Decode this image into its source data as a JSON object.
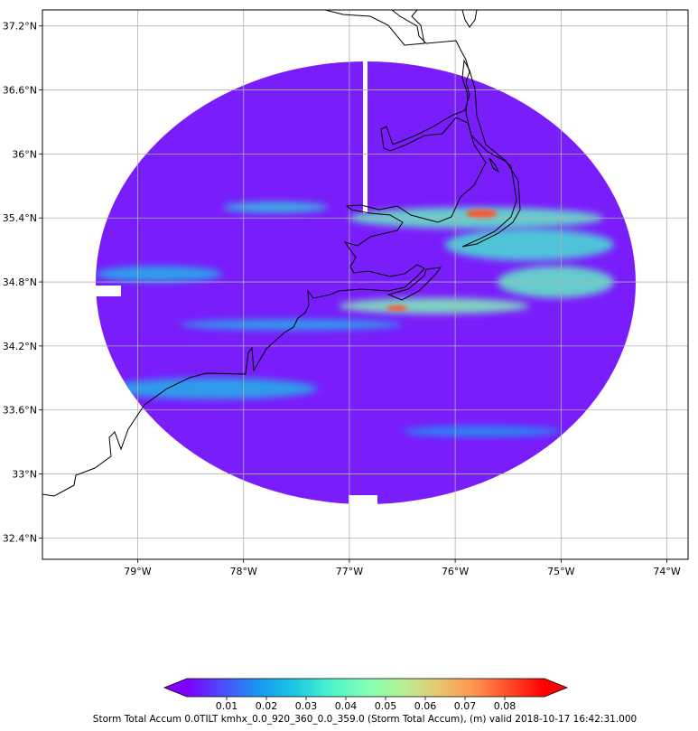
{
  "map": {
    "lon_range": [
      -79.9,
      -73.8
    ],
    "lat_range": [
      32.2,
      37.35
    ],
    "lat_ticks": [
      {
        "value": 37.2,
        "label": "37.2°N"
      },
      {
        "value": 36.6,
        "label": "36.6°N"
      },
      {
        "value": 36.0,
        "label": "36°N"
      },
      {
        "value": 35.4,
        "label": "35.4°N"
      },
      {
        "value": 34.8,
        "label": "34.8°N"
      },
      {
        "value": 34.2,
        "label": "34.2°N"
      },
      {
        "value": 33.6,
        "label": "33.6°N"
      },
      {
        "value": 33.0,
        "label": "33°N"
      },
      {
        "value": 32.4,
        "label": "32.4°N"
      }
    ],
    "lon_ticks": [
      {
        "value": -79,
        "label": "79°W"
      },
      {
        "value": -78,
        "label": "78°W"
      },
      {
        "value": -77,
        "label": "77°W"
      },
      {
        "value": -76,
        "label": "76°W"
      },
      {
        "value": -75,
        "label": "75°W"
      },
      {
        "value": -74,
        "label": "74°W"
      }
    ],
    "gridlines": true,
    "radar_center": {
      "lon": -76.88,
      "lat": 34.78
    },
    "radar_color": "#7a1dfb",
    "coastline_color": "#000000",
    "high_accum_bands": [
      {
        "lon": [
          -78.2,
          -77.2
        ],
        "lat": [
          35.45,
          35.55
        ],
        "value": 0.03
      },
      {
        "lon": [
          -77.0,
          -74.6
        ],
        "lat": [
          35.3,
          35.5
        ],
        "value": 0.04
      },
      {
        "lon": [
          -75.9,
          -75.6
        ],
        "lat": [
          35.4,
          35.48
        ],
        "value": 0.08
      },
      {
        "lon": [
          -76.1,
          -74.5
        ],
        "lat": [
          35.0,
          35.3
        ],
        "value": 0.035
      },
      {
        "lon": [
          -79.4,
          -78.2
        ],
        "lat": [
          34.8,
          34.95
        ],
        "value": 0.025
      },
      {
        "lon": [
          -77.1,
          -75.3
        ],
        "lat": [
          34.5,
          34.65
        ],
        "value": 0.045
      },
      {
        "lon": [
          -76.65,
          -76.45
        ],
        "lat": [
          34.53,
          34.58
        ],
        "value": 0.08
      },
      {
        "lon": [
          -75.6,
          -74.5
        ],
        "lat": [
          34.65,
          34.95
        ],
        "value": 0.04
      },
      {
        "lon": [
          -78.6,
          -76.5
        ],
        "lat": [
          34.35,
          34.45
        ],
        "value": 0.025
      },
      {
        "lon": [
          -79.3,
          -77.3
        ],
        "lat": [
          33.7,
          33.9
        ],
        "value": 0.025
      },
      {
        "lon": [
          -76.5,
          -75.0
        ],
        "lat": [
          33.35,
          33.45
        ],
        "value": 0.02
      }
    ]
  },
  "colorbar": {
    "colors": [
      "#7f00ff",
      "#4c4efb",
      "#1996f3",
      "#1ac7e3",
      "#4cf2ce",
      "#80ffb4",
      "#b2f295",
      "#e6c873",
      "#ff964e",
      "#ff4c28",
      "#ff0000"
    ],
    "range": [
      0,
      0.09
    ],
    "ticks": [
      {
        "value": 0.01,
        "label": "0.01"
      },
      {
        "value": 0.02,
        "label": "0.02"
      },
      {
        "value": 0.03,
        "label": "0.03"
      },
      {
        "value": 0.04,
        "label": "0.04"
      },
      {
        "value": 0.05,
        "label": "0.05"
      },
      {
        "value": 0.06,
        "label": "0.06"
      },
      {
        "value": 0.07,
        "label": "0.07"
      },
      {
        "value": 0.08,
        "label": "0.08"
      }
    ],
    "caption": "Storm Total Accum 0.0TILT kmhx_0.0_920_360_0.0_359.0 (Storm Total Accum), (m) valid 2018-10-17 16:42:31.000"
  }
}
